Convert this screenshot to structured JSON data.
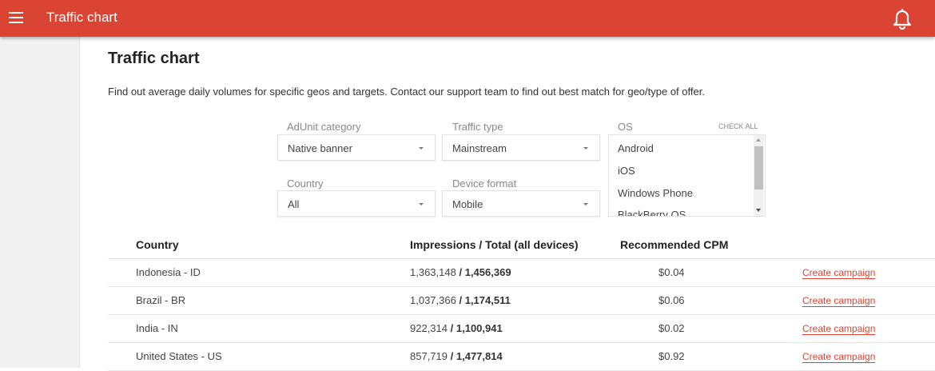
{
  "header": {
    "title": "Traffic chart",
    "menu_icon": "hamburger-icon",
    "bell_icon": "bell-icon",
    "color": "#db4432"
  },
  "page": {
    "title": "Traffic chart",
    "description": "Find out average daily volumes for specific geos and targets. Contact our support team to find out best match for geo/type of offer."
  },
  "filters": {
    "adunit": {
      "label": "AdUnit category",
      "value": "Native banner"
    },
    "traffic": {
      "label": "Traffic type",
      "value": "Mainstream"
    },
    "country": {
      "label": "Country",
      "value": "All"
    },
    "device": {
      "label": "Device format",
      "value": "Mobile"
    },
    "os": {
      "label": "OS",
      "check_all": "CHECK ALL",
      "options": [
        "Android",
        "iOS",
        "Windows Phone",
        "BlackBerry OS"
      ]
    }
  },
  "table": {
    "headers": [
      "Country",
      "Impressions / Total (all devices)",
      "Recommended CPM"
    ],
    "action_label": "Create campaign",
    "rows": [
      {
        "country": "Indonesia - ID",
        "impressions": "1,363,148",
        "total": "1,456,369",
        "cpm": "$0.04"
      },
      {
        "country": "Brazil - BR",
        "impressions": "1,037,366",
        "total": "1,174,511",
        "cpm": "$0.06"
      },
      {
        "country": "India - IN",
        "impressions": "922,314",
        "total": "1,100,941",
        "cpm": "$0.02"
      },
      {
        "country": "United States - US",
        "impressions": "857,719",
        "total": "1,477,814",
        "cpm": "$0.92"
      }
    ]
  }
}
